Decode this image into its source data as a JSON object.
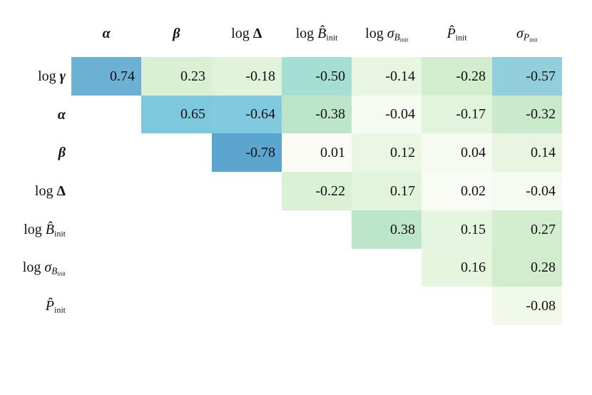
{
  "figure": {
    "background": "#ffffff",
    "text_color": "#111111"
  },
  "chart_data": {
    "type": "heatmap",
    "subtype": "upper-triangular correlation matrix",
    "title": "",
    "legend": false,
    "grid": false,
    "value_format_decimals": 2,
    "color_encoding": "absolute value of correlation, light green (0) to blue (1)",
    "columns": [
      {
        "name": "alpha",
        "tokens": [
          {
            "t": "α",
            "k": "bi"
          }
        ]
      },
      {
        "name": "beta",
        "tokens": [
          {
            "t": "β",
            "k": "bi"
          }
        ]
      },
      {
        "name": "log-Delta",
        "tokens": [
          {
            "t": "log ",
            "k": "rm"
          },
          {
            "t": "Δ",
            "k": "b"
          }
        ]
      },
      {
        "name": "log-B-hat-init",
        "tokens": [
          {
            "t": "log ",
            "k": "rm"
          },
          {
            "t": "B̂",
            "k": "it"
          },
          {
            "t": "init",
            "k": "sub"
          }
        ]
      },
      {
        "name": "log-sigma-B-init",
        "tokens": [
          {
            "t": "log ",
            "k": "rm"
          },
          {
            "t": "σ",
            "k": "it"
          },
          {
            "t": "B",
            "k": "subit"
          },
          {
            "t": "init",
            "k": "subsub"
          }
        ]
      },
      {
        "name": "P-hat-init",
        "tokens": [
          {
            "t": "P̂",
            "k": "it"
          },
          {
            "t": "init",
            "k": "sub"
          }
        ]
      },
      {
        "name": "sigma-P-init",
        "tokens": [
          {
            "t": "σ",
            "k": "it"
          },
          {
            "t": "P",
            "k": "subit"
          },
          {
            "t": "init",
            "k": "subsub"
          }
        ]
      }
    ],
    "rows": [
      {
        "name": "log-gamma",
        "tokens": [
          {
            "t": "log ",
            "k": "rm"
          },
          {
            "t": "γ",
            "k": "bi"
          }
        ]
      },
      {
        "name": "alpha",
        "tokens": [
          {
            "t": "α",
            "k": "bi"
          }
        ]
      },
      {
        "name": "beta",
        "tokens": [
          {
            "t": "β",
            "k": "bi"
          }
        ]
      },
      {
        "name": "log-Delta",
        "tokens": [
          {
            "t": "log ",
            "k": "rm"
          },
          {
            "t": "Δ",
            "k": "b"
          }
        ]
      },
      {
        "name": "log-B-hat-init",
        "tokens": [
          {
            "t": "log ",
            "k": "rm"
          },
          {
            "t": "B̂",
            "k": "it"
          },
          {
            "t": "init",
            "k": "sub"
          }
        ]
      },
      {
        "name": "log-sigma-B-init",
        "tokens": [
          {
            "t": "log ",
            "k": "rm"
          },
          {
            "t": "σ",
            "k": "it"
          },
          {
            "t": "B",
            "k": "subit"
          },
          {
            "t": "init",
            "k": "subsub"
          }
        ]
      },
      {
        "name": "P-hat-init",
        "tokens": [
          {
            "t": "P̂",
            "k": "it"
          },
          {
            "t": "init",
            "k": "sub"
          }
        ]
      }
    ],
    "matrix": [
      [
        0.74,
        0.23,
        -0.18,
        -0.5,
        -0.14,
        -0.28,
        -0.57
      ],
      [
        null,
        0.65,
        -0.64,
        -0.38,
        -0.04,
        -0.17,
        -0.32
      ],
      [
        null,
        null,
        -0.78,
        0.01,
        0.12,
        0.04,
        0.14
      ],
      [
        null,
        null,
        null,
        -0.22,
        0.17,
        0.02,
        -0.04
      ],
      [
        null,
        null,
        null,
        null,
        0.38,
        0.15,
        0.27
      ],
      [
        null,
        null,
        null,
        null,
        null,
        0.16,
        0.28
      ],
      [
        null,
        null,
        null,
        null,
        null,
        null,
        -0.08
      ]
    ],
    "colormap_stops": [
      [
        0.0,
        "#fcfdf7"
      ],
      [
        0.05,
        "#f5faef"
      ],
      [
        0.14,
        "#e8f6e1"
      ],
      [
        0.23,
        "#d9f0d3"
      ],
      [
        0.28,
        "#d2edcd"
      ],
      [
        0.38,
        "#bce5c9"
      ],
      [
        0.5,
        "#a5ded2"
      ],
      [
        0.57,
        "#92cfdd"
      ],
      [
        0.65,
        "#7ec8de"
      ],
      [
        0.74,
        "#6cb0d4"
      ],
      [
        0.78,
        "#5ba6cf"
      ],
      [
        1.0,
        "#2b8cbe"
      ]
    ]
  }
}
